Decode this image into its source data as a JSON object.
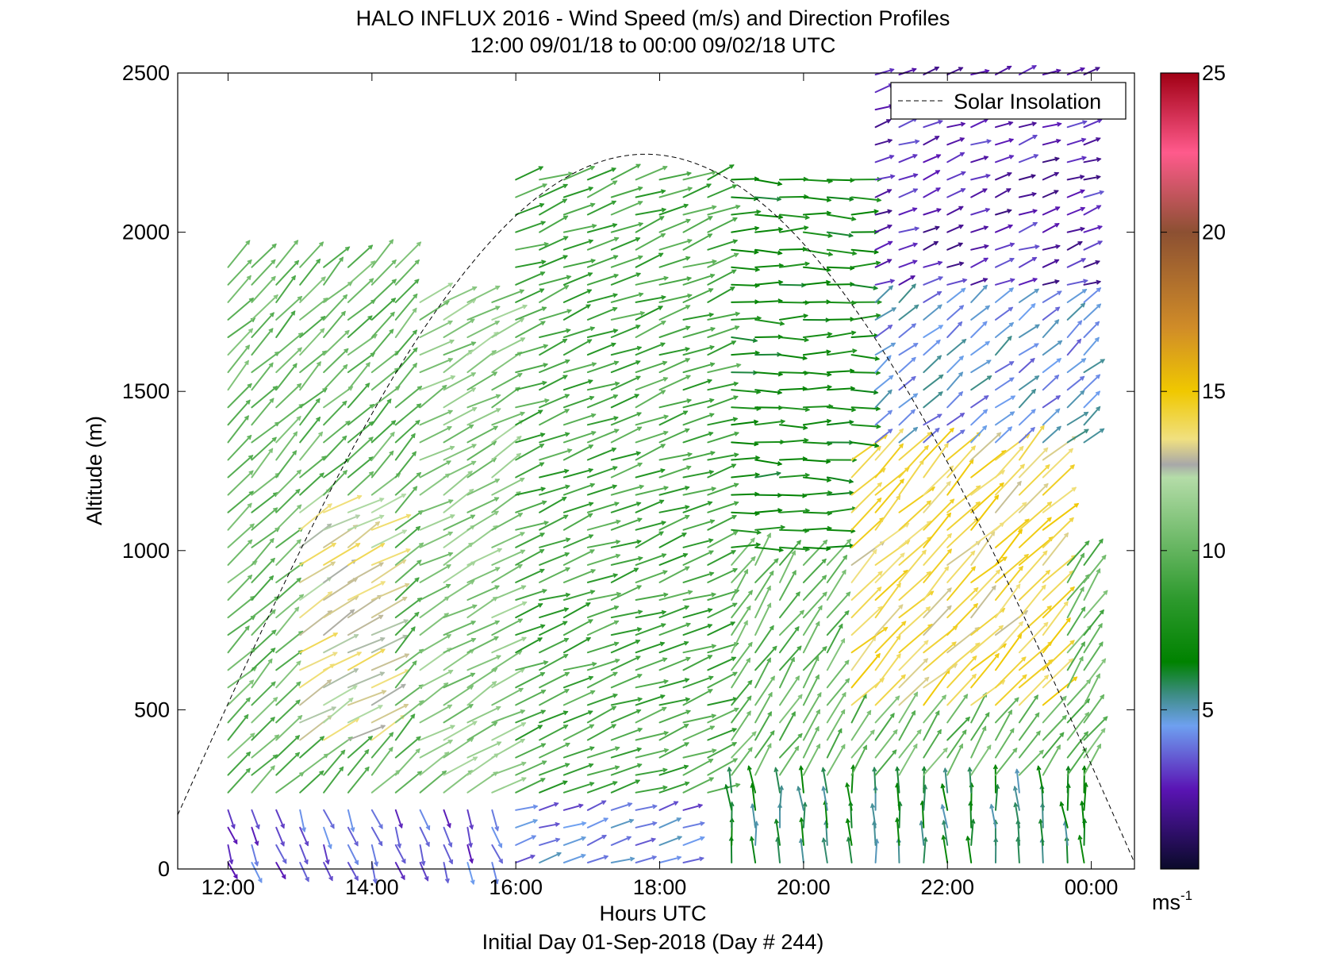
{
  "chart_data": {
    "type": "vector-field",
    "title": "HALO INFLUX 2016 - Wind Speed (m/s) and Direction Profiles",
    "subtitle": "12:00 09/01/18 to 00:00 09/02/18  UTC",
    "xlabel": "Hours UTC",
    "footer": "Initial Day 01-Sep-2018 (Day # 244)",
    "ylabel": "Altitude (m)",
    "x_range_hours": [
      11.3,
      24.6
    ],
    "y_range_m": [
      0,
      2500
    ],
    "x_ticks": [
      {
        "value": 12,
        "label": "12:00"
      },
      {
        "value": 14,
        "label": "14:00"
      },
      {
        "value": 16,
        "label": "16:00"
      },
      {
        "value": 18,
        "label": "18:00"
      },
      {
        "value": 20,
        "label": "20:00"
      },
      {
        "value": 22,
        "label": "22:00"
      },
      {
        "value": 24,
        "label": "00:00"
      }
    ],
    "y_ticks": [
      {
        "value": 0,
        "label": "0"
      },
      {
        "value": 500,
        "label": "500"
      },
      {
        "value": 1000,
        "label": "1000"
      },
      {
        "value": 1500,
        "label": "1500"
      },
      {
        "value": 2000,
        "label": "2000"
      },
      {
        "value": 2500,
        "label": "2500"
      }
    ],
    "legend": {
      "label": "Solar Insolation",
      "placement": "top-right",
      "style": "dashed"
    },
    "solar_insolation": {
      "start_hour": 11.3,
      "peak_hour": 17.8,
      "end_hour": 24.6,
      "peak_altitude_m": 2245,
      "start_altitude_m": 170,
      "end_altitude_m": 20
    },
    "profile_times_hours": [
      12.0,
      12.33,
      12.67,
      13.0,
      13.33,
      13.67,
      14.0,
      14.33,
      14.67,
      15.0,
      15.33,
      15.67,
      16.0,
      16.33,
      16.67,
      17.0,
      17.33,
      17.67,
      18.0,
      18.33,
      18.67,
      19.0,
      19.33,
      19.67,
      20.0,
      20.33,
      20.67,
      21.0,
      21.33,
      21.67,
      22.0,
      22.33,
      22.67,
      23.0,
      23.33,
      23.67,
      23.9
    ],
    "regions": [
      {
        "t": [
          12.0,
          16.0
        ],
        "alt": [
          0,
          200
        ],
        "speed_ms": 3.5,
        "dir_deg": 340
      },
      {
        "t": [
          12.0,
          14.5
        ],
        "alt": [
          200,
          1900
        ],
        "speed_ms": 10,
        "dir_deg": 225
      },
      {
        "t": [
          12.8,
          14.2
        ],
        "alt": [
          400,
          1150
        ],
        "speed_ms": 13,
        "dir_deg": 240
      },
      {
        "t": [
          14.5,
          16.0
        ],
        "alt": [
          200,
          1800
        ],
        "speed_ms": 11,
        "dir_deg": 240
      },
      {
        "t": [
          16.0,
          18.5
        ],
        "alt": [
          0,
          200
        ],
        "speed_ms": 4,
        "dir_deg": 250
      },
      {
        "t": [
          16.0,
          19.0
        ],
        "alt": [
          200,
          2200
        ],
        "speed_ms": 9,
        "dir_deg": 250
      },
      {
        "t": [
          19.0,
          21.0
        ],
        "alt": [
          1000,
          2200
        ],
        "speed_ms": 7,
        "dir_deg": 270
      },
      {
        "t": [
          19.0,
          24.0
        ],
        "alt": [
          0,
          250
        ],
        "speed_ms": 6,
        "dir_deg": 175
      },
      {
        "t": [
          19.0,
          24.0
        ],
        "alt": [
          250,
          1000
        ],
        "speed_ms": 10,
        "dir_deg": 215
      },
      {
        "t": [
          20.5,
          23.5
        ],
        "alt": [
          500,
          1300
        ],
        "speed_ms": 14,
        "dir_deg": 225
      },
      {
        "t": [
          21.0,
          24.0
        ],
        "alt": [
          1300,
          1800
        ],
        "speed_ms": 4.5,
        "dir_deg": 230
      },
      {
        "t": [
          21.0,
          24.0
        ],
        "alt": [
          1800,
          2500
        ],
        "speed_ms": 2.5,
        "dir_deg": 250
      }
    ],
    "colorbar": {
      "range": [
        0,
        25
      ],
      "ticks": [
        {
          "value": 5,
          "label": "5"
        },
        {
          "value": 10,
          "label": "10"
        },
        {
          "value": 15,
          "label": "15"
        },
        {
          "value": 20,
          "label": "20"
        },
        {
          "value": 25,
          "label": "25"
        }
      ],
      "unit_base": "ms",
      "unit_exp": "-1",
      "stops": [
        {
          "v": 0,
          "c": "#0a0a2a"
        },
        {
          "v": 2.5,
          "c": "#5a14b4"
        },
        {
          "v": 4.5,
          "c": "#6ea0f0"
        },
        {
          "v": 5.5,
          "c": "#3c8c82"
        },
        {
          "v": 6.5,
          "c": "#008200"
        },
        {
          "v": 8.5,
          "c": "#2e9a2e"
        },
        {
          "v": 12.3,
          "c": "#b4dca8"
        },
        {
          "v": 12.7,
          "c": "#a8a8a8"
        },
        {
          "v": 13.5,
          "c": "#f0e080"
        },
        {
          "v": 15,
          "c": "#f0c800"
        },
        {
          "v": 17,
          "c": "#d08c28"
        },
        {
          "v": 20,
          "c": "#8c5032"
        },
        {
          "v": 22.5,
          "c": "#ff5a8c"
        },
        {
          "v": 25,
          "c": "#a00014"
        }
      ]
    }
  }
}
